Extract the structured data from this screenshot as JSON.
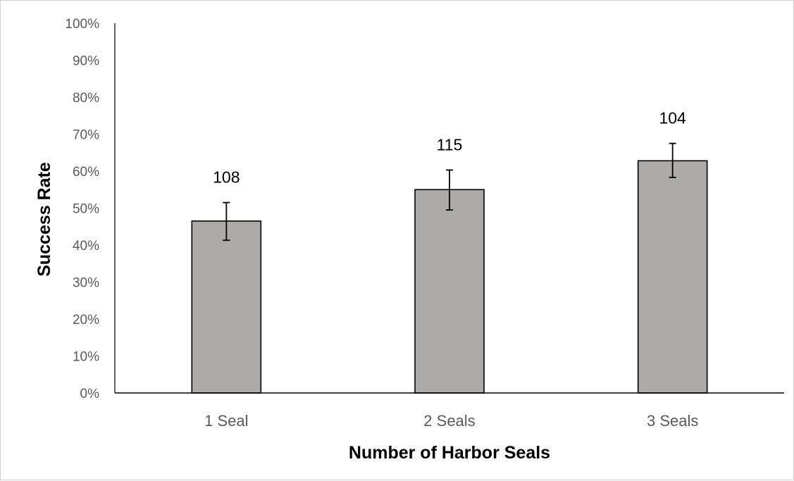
{
  "chart_data": {
    "type": "bar",
    "title": "",
    "xlabel": "Number of Harbor Seals",
    "ylabel": "Success Rate",
    "categories": [
      "1 Seal",
      "2 Seals",
      "3 Seals"
    ],
    "values": [
      46.5,
      55.0,
      62.8
    ],
    "error_low": [
      41.3,
      49.5,
      58.3
    ],
    "error_high": [
      51.5,
      60.3,
      67.5
    ],
    "data_labels": [
      "108",
      "115",
      "104"
    ],
    "ylim": [
      0,
      100
    ],
    "y_ticks": [
      0,
      10,
      20,
      30,
      40,
      50,
      60,
      70,
      80,
      90,
      100
    ],
    "y_tick_labels": [
      "0%",
      "10%",
      "20%",
      "30%",
      "40%",
      "50%",
      "60%",
      "70%",
      "80%",
      "90%",
      "100%"
    ],
    "grid": false,
    "legend": "none",
    "colors": {
      "bar_fill": "#aeaaa8",
      "bar_stroke": "#000000",
      "axis": "#000000"
    }
  }
}
